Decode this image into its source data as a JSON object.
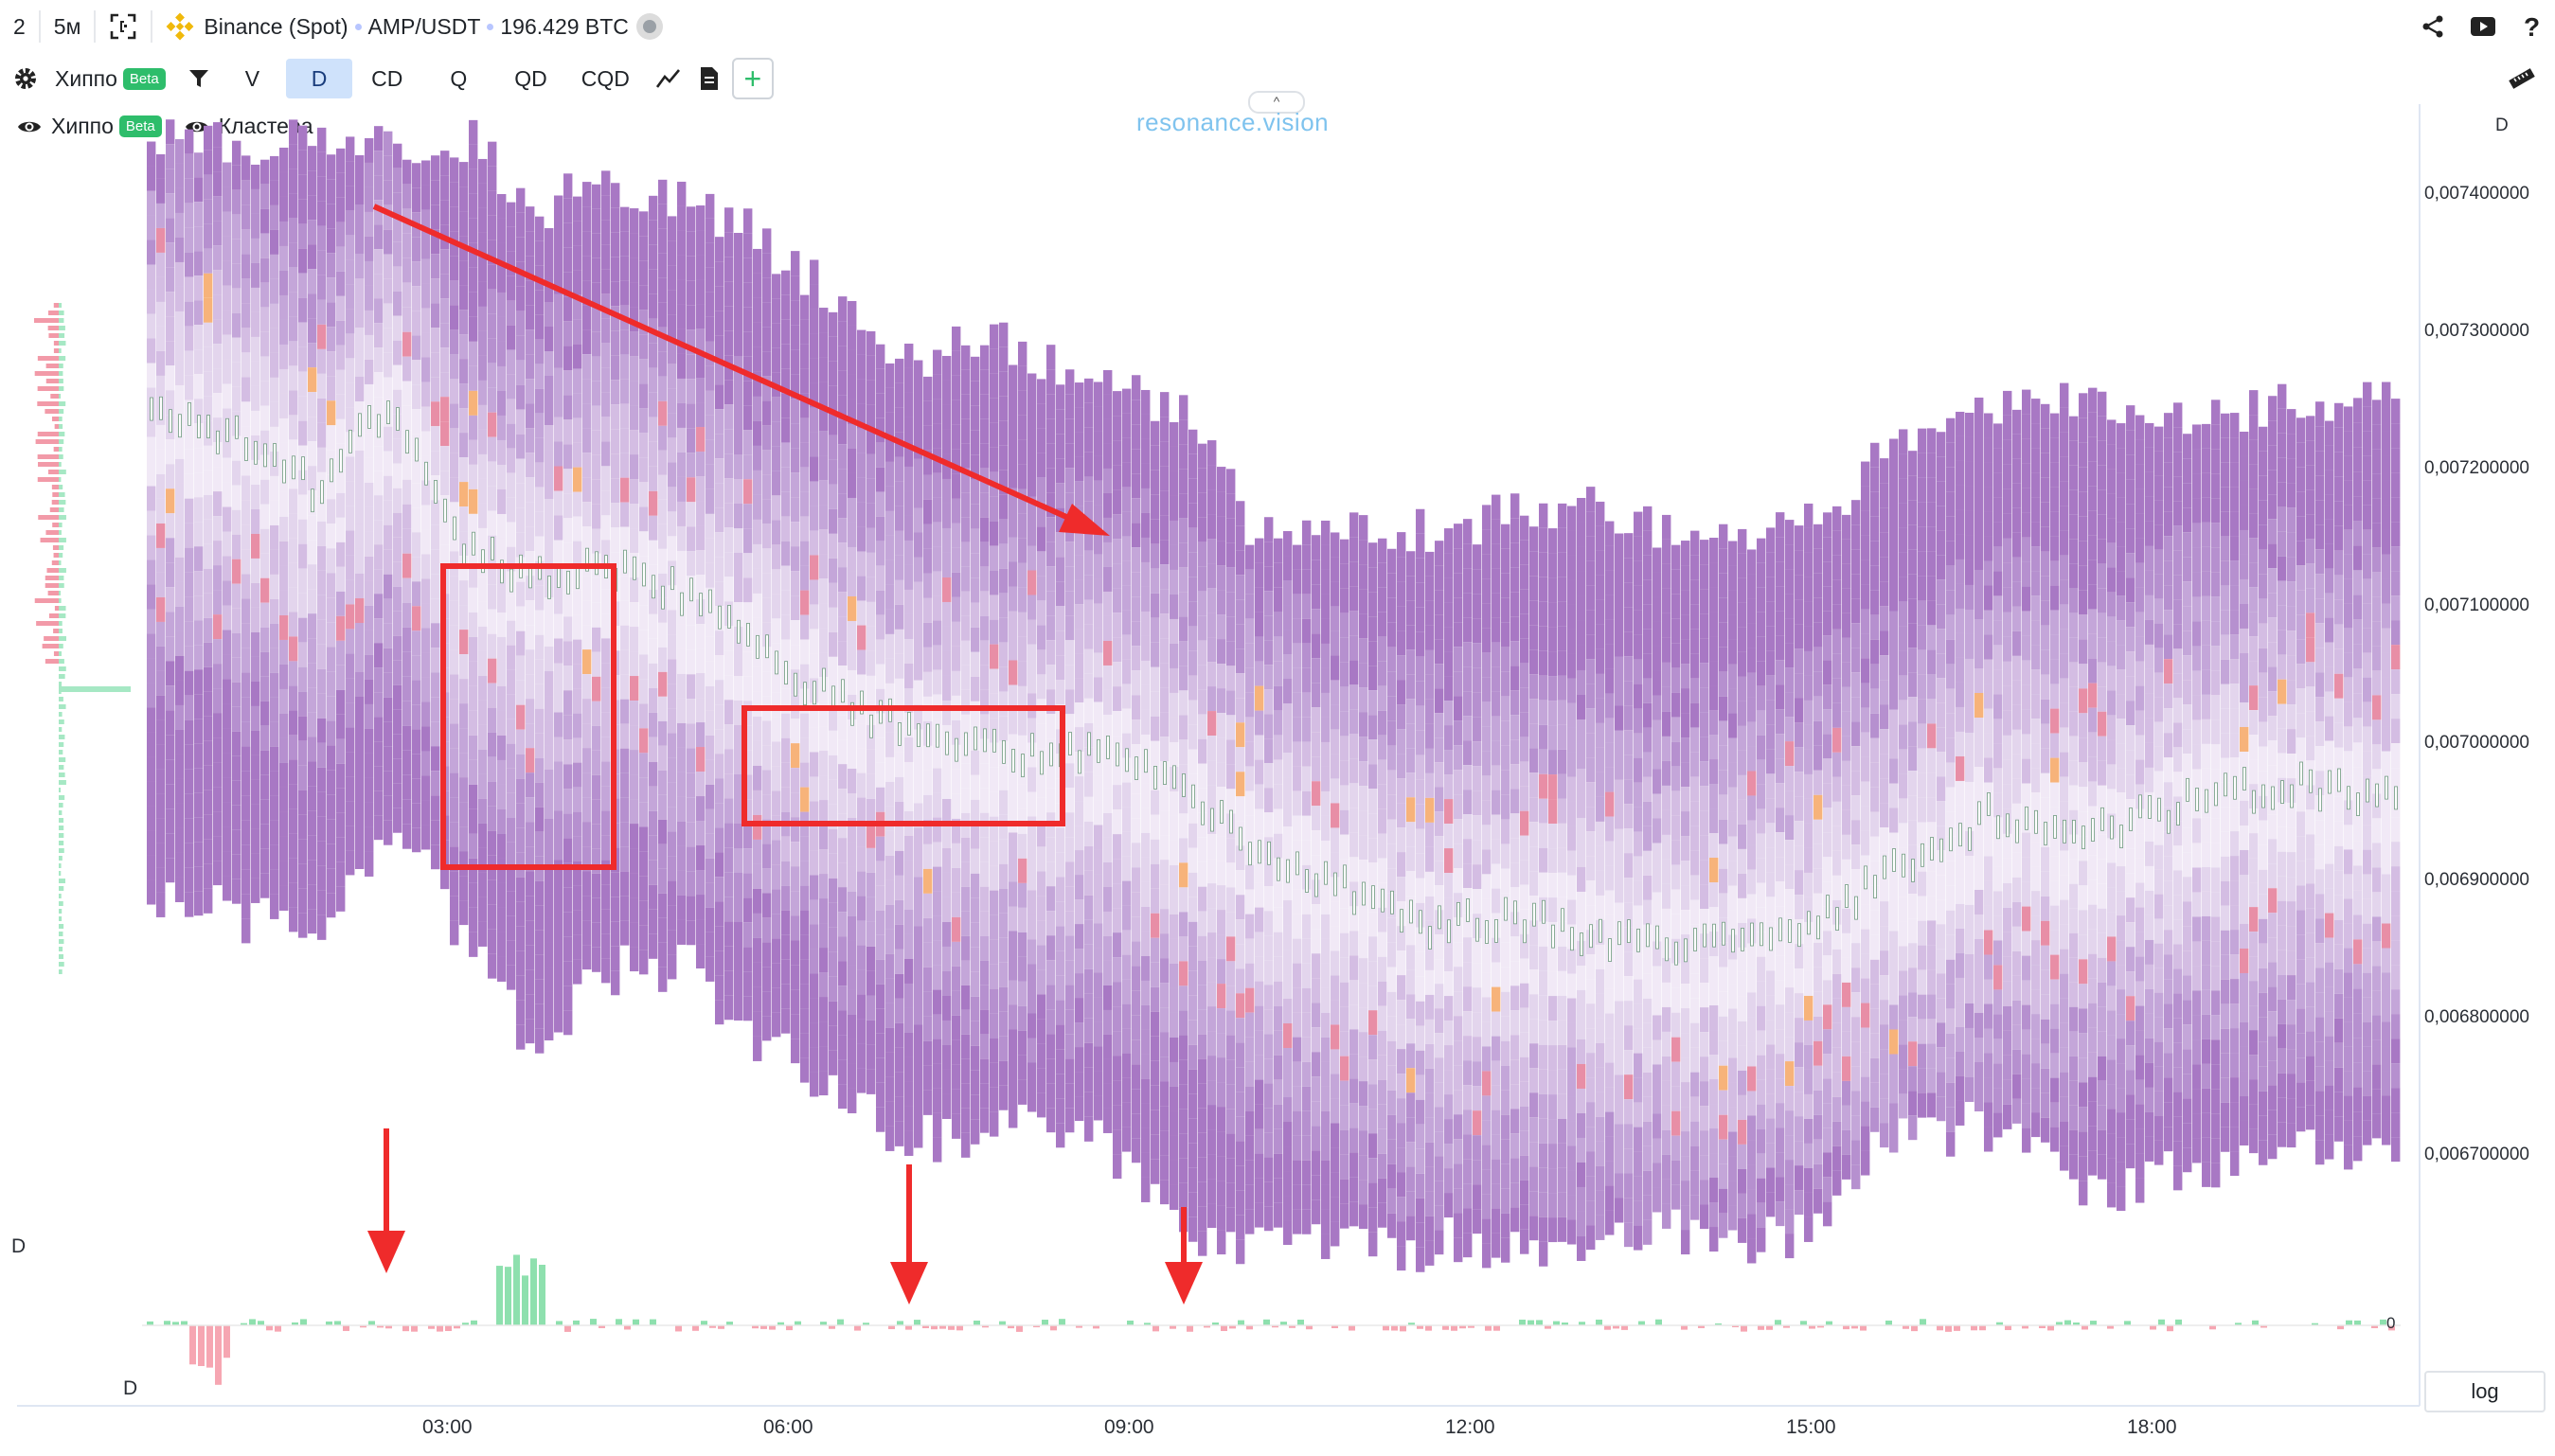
{
  "topbar": {
    "layout_count": "2",
    "timeframe": "5м",
    "exchange": "Binance (Spot)",
    "pair": "AMP/USDT",
    "volume": "196.429 BTC"
  },
  "toolbar": {
    "indicator": "Хиппо",
    "indicator_badge": "Beta",
    "modes": [
      "V",
      "D",
      "CD",
      "Q",
      "QD",
      "CQD"
    ],
    "active_mode": "D"
  },
  "legend": {
    "item1": "Хиппо",
    "item1_badge": "Beta",
    "item2": "Кластера"
  },
  "watermark": "resonance.vision",
  "pane_label": "D",
  "subpane_label_left": "D",
  "subpane_zero": "0",
  "log_button": "log",
  "colors": {
    "accent": "#cfe2fb",
    "cluster": "#b48cc8",
    "annotation": "#ef2b2b",
    "buy": "#2ebd6b",
    "sell": "#f07c8a"
  },
  "chart_data": {
    "type": "heatmap",
    "y_axis_ticks": [
      "0,007400000",
      "0,007300000",
      "0,007200000",
      "0,007100000",
      "0,007000000",
      "0,006900000",
      "0,006800000",
      "0,006700000"
    ],
    "x_axis_ticks": [
      "03:00",
      "06:00",
      "09:00",
      "12:00",
      "15:00",
      "18:00"
    ]
  }
}
